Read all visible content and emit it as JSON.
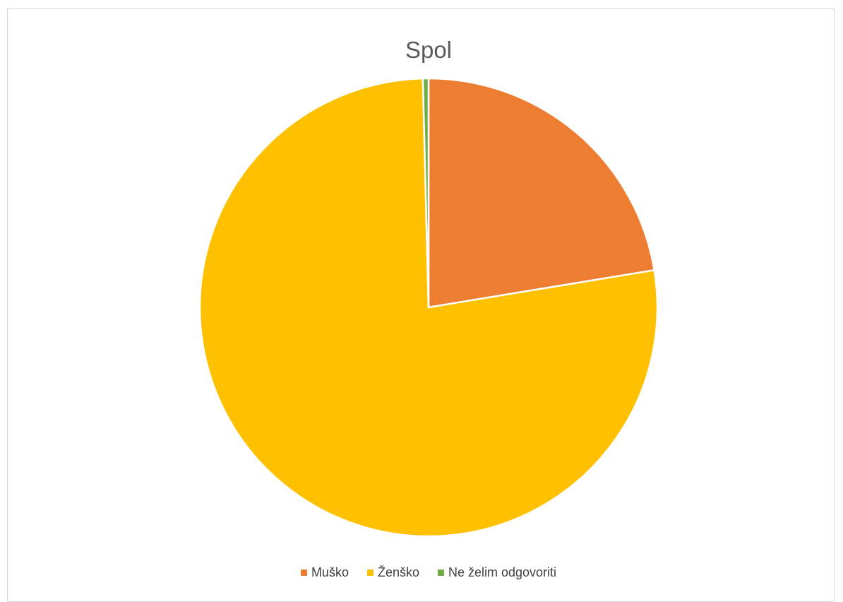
{
  "chart_data": {
    "type": "pie",
    "title": "Spol",
    "categories": [
      "Muško",
      "Ženško",
      "Ne želim odgovoriti"
    ],
    "values": [
      22.4,
      77.2,
      0.4
    ],
    "colors": [
      "#ed7d31",
      "#ffc000",
      "#70ad47"
    ],
    "legend_position": "bottom",
    "start_angle_deg": 0,
    "direction": "clockwise"
  }
}
